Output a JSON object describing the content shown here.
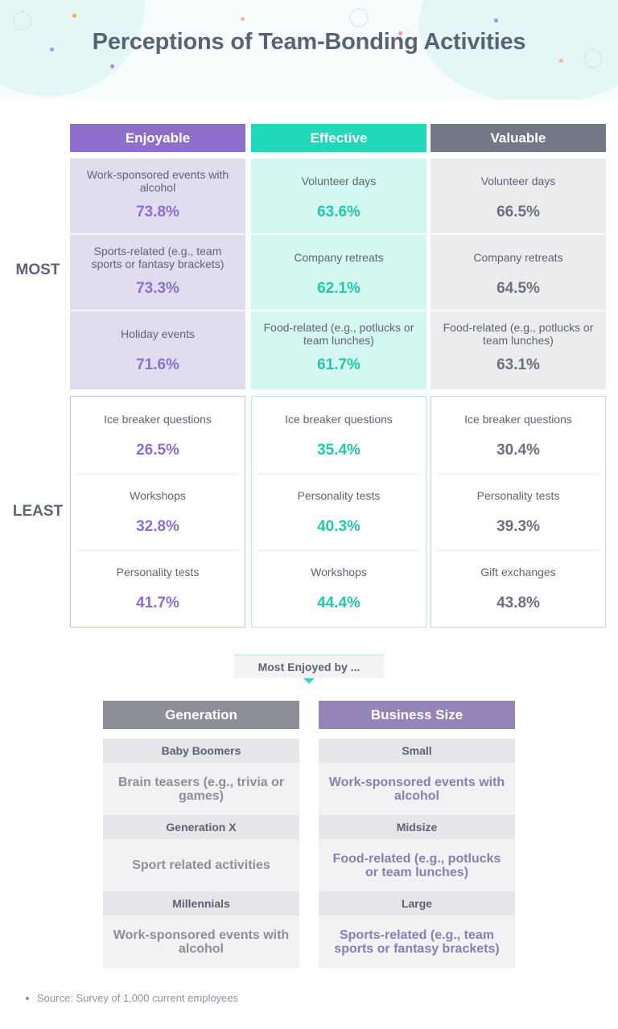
{
  "title": "Perceptions of Team-Bonding Activities",
  "colors": {
    "enjoyable_head": "#8e6ecb",
    "enjoyable_most_bg": "#e2dcef",
    "enjoyable_value": "#8d6fcb",
    "enjoyable_border": "#c9bde6",
    "effective_head": "#21d8b9",
    "effective_most_bg": "#d5f7f1",
    "effective_value": "#20c9ab",
    "effective_border": "#b2eee3",
    "valuable_head": "#727886",
    "valuable_most_bg": "#ececee",
    "valuable_value": "#6c7180",
    "valuable_border": "#cfd1d7",
    "generation_head": "#8c8f97",
    "generation_value": "#8b8f99",
    "business_head": "#9584b6",
    "business_value": "#8b7db3"
  },
  "row_labels": {
    "most": "MOST",
    "least": "LEAST"
  },
  "chart_data": {
    "type": "table",
    "title": "Perceptions of Team-Bonding Activities",
    "unit": "%",
    "columns": [
      {
        "name": "Enjoyable",
        "most": [
          {
            "label": "Work-sponsored events with alcohol",
            "value": "73.8%"
          },
          {
            "label": "Sports-related (e.g., team sports or fantasy brackets)",
            "value": "73.3%"
          },
          {
            "label": "Holiday events",
            "value": "71.6%"
          }
        ],
        "least": [
          {
            "label": "Ice breaker questions",
            "value": "26.5%"
          },
          {
            "label": "Workshops",
            "value": "32.8%"
          },
          {
            "label": "Personality tests",
            "value": "41.7%"
          }
        ]
      },
      {
        "name": "Effective",
        "most": [
          {
            "label": "Volunteer days",
            "value": "63.6%"
          },
          {
            "label": "Company retreats",
            "value": "62.1%"
          },
          {
            "label": "Food-related (e.g., potlucks or team lunches)",
            "value": "61.7%"
          }
        ],
        "least": [
          {
            "label": "Ice breaker questions",
            "value": "35.4%"
          },
          {
            "label": "Personality tests",
            "value": "40.3%"
          },
          {
            "label": "Workshops",
            "value": "44.4%"
          }
        ]
      },
      {
        "name": "Valuable",
        "most": [
          {
            "label": "Volunteer days",
            "value": "66.5%"
          },
          {
            "label": "Company retreats",
            "value": "64.5%"
          },
          {
            "label": "Food-related (e.g., potlucks or team lunches)",
            "value": "63.1%"
          }
        ],
        "least": [
          {
            "label": "Ice breaker questions",
            "value": "30.4%"
          },
          {
            "label": "Personality tests",
            "value": "39.3%"
          },
          {
            "label": "Gift exchanges",
            "value": "43.8%"
          }
        ]
      }
    ]
  },
  "most_enjoyed": {
    "heading": "Most Enjoyed by ...",
    "generation": {
      "header": "Generation",
      "rows": [
        {
          "group": "Baby Boomers",
          "activity": "Brain teasers (e.g., trivia or games)"
        },
        {
          "group": "Generation X",
          "activity": "Sport related activities"
        },
        {
          "group": "Millennials",
          "activity": "Work-sponsored events with alcohol"
        }
      ]
    },
    "business_size": {
      "header": "Business Size",
      "rows": [
        {
          "group": "Small",
          "activity": "Work-sponsored events with alcohol"
        },
        {
          "group": "Midsize",
          "activity": "Food-related (e.g., potlucks or team lunches)"
        },
        {
          "group": "Large",
          "activity": "Sports-related (e.g., team sports or fantasy brackets)"
        }
      ]
    }
  },
  "source": "Source: Survey of 1,000 current employees"
}
